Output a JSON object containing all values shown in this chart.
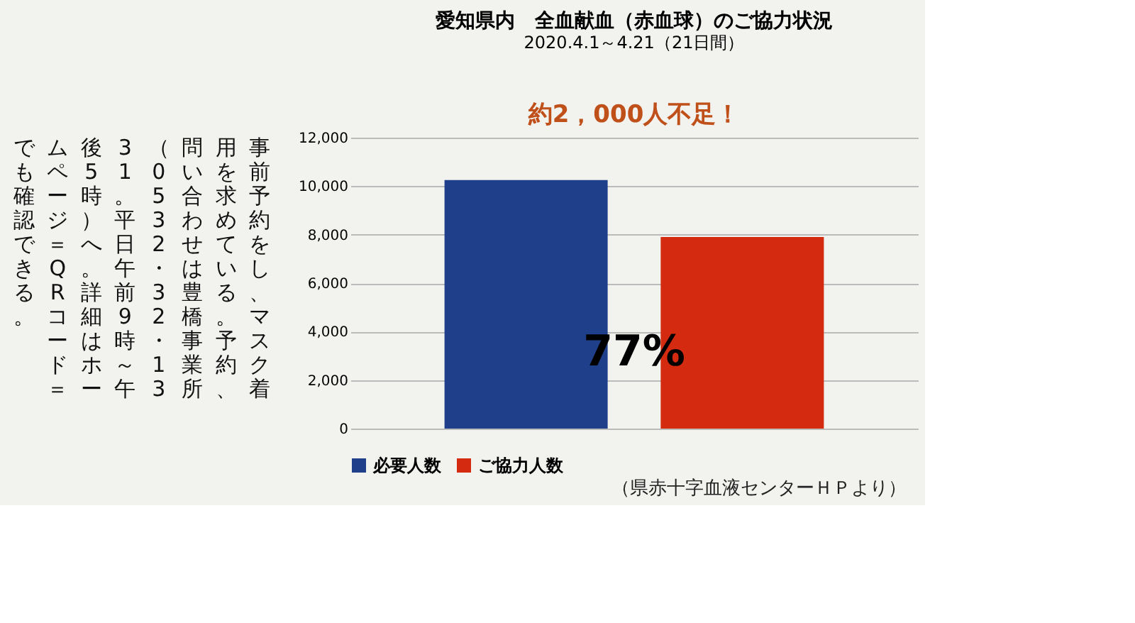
{
  "chart_data": {
    "type": "bar",
    "title": "愛知県内　全血献血（赤血球）のご協力状況",
    "subtitle": "2020.4.1～4.21（21日間）",
    "categories": [
      null
    ],
    "series": [
      {
        "name": "必要人数",
        "color": "#1f3f8a",
        "values": [
          10250
        ]
      },
      {
        "name": "ご協力人数",
        "color": "#d42a10",
        "values": [
          7900
        ]
      }
    ],
    "ylim": [
      0,
      12000
    ],
    "yticks": [
      {
        "value": 0,
        "label": "0"
      },
      {
        "value": 2000,
        "label": "2,000"
      },
      {
        "value": 4000,
        "label": "4,000"
      },
      {
        "value": 6000,
        "label": "6,000"
      },
      {
        "value": 8000,
        "label": "8,000"
      },
      {
        "value": 10000,
        "label": "10,000"
      },
      {
        "value": 12000,
        "label": "12,000"
      }
    ],
    "grid": "y",
    "legend": "bottom",
    "annotations": [
      "約2，000人不足！",
      "77%",
      "（県赤十字血液センターＨＰより）",
      "事前予約をし、マスク着用を求めている。予約、問い合わせは豊橋事業所（0532・32・1331。平日午前9時～午後5時）へ。詳細はホームページ＝QRコード＝でも確認できる。"
    ]
  }
}
